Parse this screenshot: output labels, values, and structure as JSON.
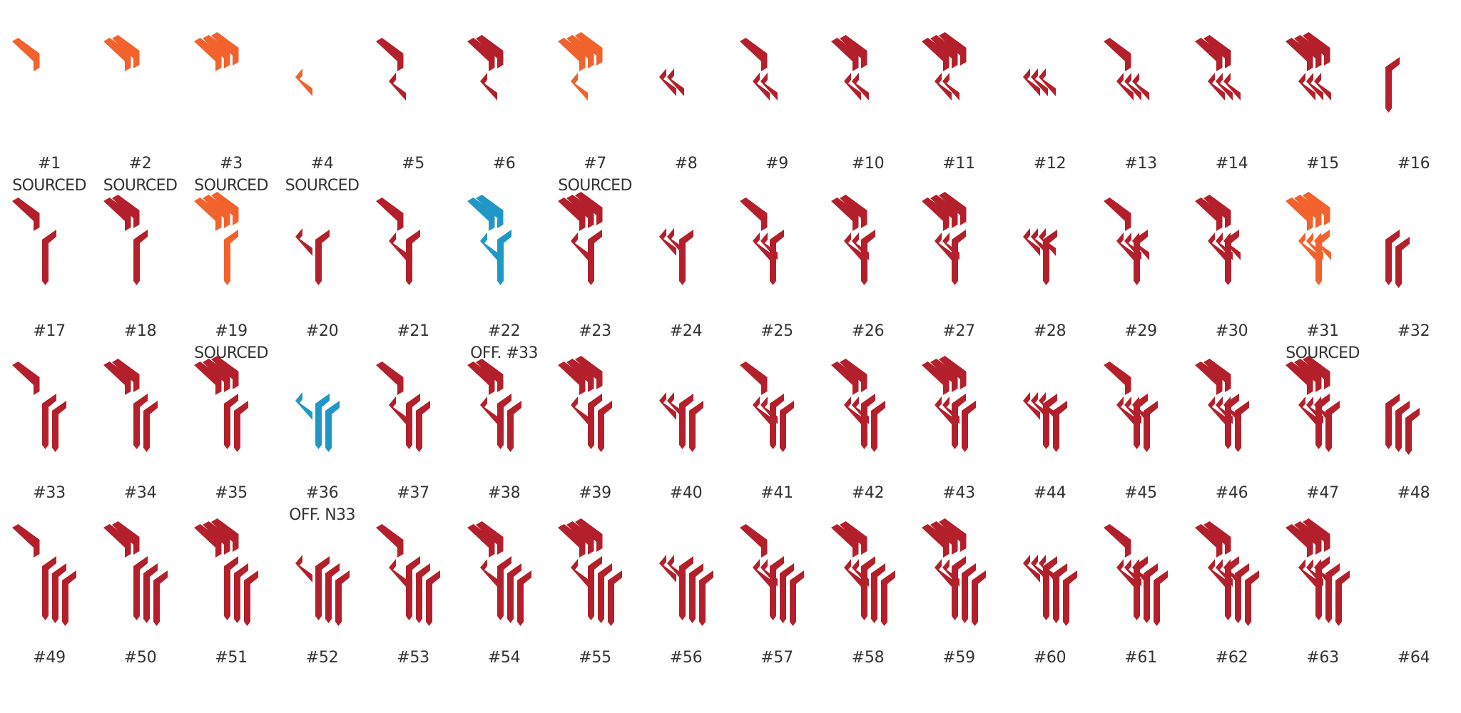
{
  "colors": {
    "red": "#b3202b",
    "orange": "#f2622d",
    "blue": "#1f98c8",
    "text": "#333333"
  },
  "glyphs": [
    {
      "label": "#1",
      "note": "SOURCED",
      "color": "orange",
      "chevrons": 1,
      "hook": 0,
      "stems": 0,
      "wing": 0
    },
    {
      "label": "#2",
      "note": "SOURCED",
      "color": "orange",
      "chevrons": 2,
      "hook": 0,
      "stems": 0,
      "wing": 0
    },
    {
      "label": "#3",
      "note": "SOURCED",
      "color": "orange",
      "chevrons": 3,
      "hook": 0,
      "stems": 0,
      "wing": 0
    },
    {
      "label": "#4",
      "note": "SOURCED",
      "color": "orange",
      "chevrons": 0,
      "hook": 1,
      "stems": 0,
      "wing": 0
    },
    {
      "label": "#5",
      "note": "",
      "color": "red",
      "chevrons": 1,
      "hook": 1,
      "stems": 0,
      "wing": 0
    },
    {
      "label": "#6",
      "note": "",
      "color": "red",
      "chevrons": 2,
      "hook": 1,
      "stems": 0,
      "wing": 0
    },
    {
      "label": "#7",
      "note": "SOURCED",
      "color": "orange",
      "chevrons": 3,
      "hook": 1,
      "stems": 0,
      "wing": 0
    },
    {
      "label": "#8",
      "note": "",
      "color": "red",
      "chevrons": 0,
      "hook": 2,
      "stems": 0,
      "wing": 0
    },
    {
      "label": "#9",
      "note": "",
      "color": "red",
      "chevrons": 1,
      "hook": 2,
      "stems": 0,
      "wing": 0
    },
    {
      "label": "#10",
      "note": "",
      "color": "red",
      "chevrons": 2,
      "hook": 2,
      "stems": 0,
      "wing": 0
    },
    {
      "label": "#11",
      "note": "",
      "color": "red",
      "chevrons": 3,
      "hook": 2,
      "stems": 0,
      "wing": 0
    },
    {
      "label": "#12",
      "note": "",
      "color": "red",
      "chevrons": 0,
      "hook": 3,
      "stems": 0,
      "wing": 0
    },
    {
      "label": "#13",
      "note": "",
      "color": "red",
      "chevrons": 1,
      "hook": 3,
      "stems": 0,
      "wing": 0
    },
    {
      "label": "#14",
      "note": "",
      "color": "red",
      "chevrons": 2,
      "hook": 3,
      "stems": 0,
      "wing": 0
    },
    {
      "label": "#15",
      "note": "",
      "color": "red",
      "chevrons": 3,
      "hook": 3,
      "stems": 0,
      "wing": 0
    },
    {
      "label": "#16",
      "note": "",
      "color": "red",
      "chevrons": 0,
      "hook": 0,
      "stems": 1,
      "wing": 1
    },
    {
      "label": "#17",
      "note": "",
      "color": "red",
      "chevrons": 1,
      "hook": 0,
      "stems": 1,
      "wing": 0
    },
    {
      "label": "#18",
      "note": "",
      "color": "red",
      "chevrons": 2,
      "hook": 0,
      "stems": 1,
      "wing": 0
    },
    {
      "label": "#19",
      "note": "SOURCED",
      "color": "orange",
      "chevrons": 3,
      "hook": 0,
      "stems": 1,
      "wing": 0
    },
    {
      "label": "#20",
      "note": "",
      "color": "red",
      "chevrons": 0,
      "hook": 1,
      "stems": 1,
      "wing": 0
    },
    {
      "label": "#21",
      "note": "",
      "color": "red",
      "chevrons": 1,
      "hook": 1,
      "stems": 1,
      "wing": 0
    },
    {
      "label": "#22",
      "note": "OFF. #33",
      "color": "blue",
      "chevrons": 2,
      "hook": 1,
      "stems": 1,
      "wing": 0
    },
    {
      "label": "#23",
      "note": "",
      "color": "red",
      "chevrons": 3,
      "hook": 1,
      "stems": 1,
      "wing": 0
    },
    {
      "label": "#24",
      "note": "",
      "color": "red",
      "chevrons": 0,
      "hook": 2,
      "stems": 1,
      "wing": 0
    },
    {
      "label": "#25",
      "note": "",
      "color": "red",
      "chevrons": 1,
      "hook": 2,
      "stems": 1,
      "wing": 0
    },
    {
      "label": "#26",
      "note": "",
      "color": "red",
      "chevrons": 2,
      "hook": 2,
      "stems": 1,
      "wing": 0
    },
    {
      "label": "#27",
      "note": "",
      "color": "red",
      "chevrons": 3,
      "hook": 2,
      "stems": 1,
      "wing": 0
    },
    {
      "label": "#28",
      "note": "",
      "color": "red",
      "chevrons": 0,
      "hook": 3,
      "stems": 1,
      "wing": 0
    },
    {
      "label": "#29",
      "note": "",
      "color": "red",
      "chevrons": 1,
      "hook": 3,
      "stems": 1,
      "wing": 0
    },
    {
      "label": "#30",
      "note": "",
      "color": "red",
      "chevrons": 2,
      "hook": 3,
      "stems": 1,
      "wing": 0
    },
    {
      "label": "#31",
      "note": "SOURCED",
      "color": "orange",
      "chevrons": 3,
      "hook": 3,
      "stems": 1,
      "wing": 0
    },
    {
      "label": "#32",
      "note": "",
      "color": "red",
      "chevrons": 0,
      "hook": 0,
      "stems": 2,
      "wing": 1
    },
    {
      "label": "#33",
      "note": "",
      "color": "red",
      "chevrons": 1,
      "hook": 0,
      "stems": 2,
      "wing": 0
    },
    {
      "label": "#34",
      "note": "",
      "color": "red",
      "chevrons": 2,
      "hook": 0,
      "stems": 2,
      "wing": 0
    },
    {
      "label": "#35",
      "note": "",
      "color": "red",
      "chevrons": 3,
      "hook": 0,
      "stems": 2,
      "wing": 0
    },
    {
      "label": "#36",
      "note": "OFF. N33",
      "color": "blue",
      "chevrons": 0,
      "hook": 1,
      "stems": 2,
      "wing": 0
    },
    {
      "label": "#37",
      "note": "",
      "color": "red",
      "chevrons": 1,
      "hook": 1,
      "stems": 2,
      "wing": 0
    },
    {
      "label": "#38",
      "note": "",
      "color": "red",
      "chevrons": 2,
      "hook": 1,
      "stems": 2,
      "wing": 0
    },
    {
      "label": "#39",
      "note": "",
      "color": "red",
      "chevrons": 3,
      "hook": 1,
      "stems": 2,
      "wing": 0
    },
    {
      "label": "#40",
      "note": "",
      "color": "red",
      "chevrons": 0,
      "hook": 2,
      "stems": 2,
      "wing": 0
    },
    {
      "label": "#41",
      "note": "",
      "color": "red",
      "chevrons": 1,
      "hook": 2,
      "stems": 2,
      "wing": 0
    },
    {
      "label": "#42",
      "note": "",
      "color": "red",
      "chevrons": 2,
      "hook": 2,
      "stems": 2,
      "wing": 0
    },
    {
      "label": "#43",
      "note": "",
      "color": "red",
      "chevrons": 3,
      "hook": 2,
      "stems": 2,
      "wing": 0
    },
    {
      "label": "#44",
      "note": "",
      "color": "red",
      "chevrons": 0,
      "hook": 3,
      "stems": 2,
      "wing": 0
    },
    {
      "label": "#45",
      "note": "",
      "color": "red",
      "chevrons": 1,
      "hook": 3,
      "stems": 2,
      "wing": 0
    },
    {
      "label": "#46",
      "note": "",
      "color": "red",
      "chevrons": 2,
      "hook": 3,
      "stems": 2,
      "wing": 0
    },
    {
      "label": "#47",
      "note": "",
      "color": "red",
      "chevrons": 3,
      "hook": 3,
      "stems": 2,
      "wing": 0
    },
    {
      "label": "#48",
      "note": "",
      "color": "red",
      "chevrons": 0,
      "hook": 0,
      "stems": 3,
      "wing": 1
    },
    {
      "label": "#49",
      "note": "",
      "color": "red",
      "chevrons": 1,
      "hook": 0,
      "stems": 3,
      "wing": 0
    },
    {
      "label": "#50",
      "note": "",
      "color": "red",
      "chevrons": 2,
      "hook": 0,
      "stems": 3,
      "wing": 0
    },
    {
      "label": "#51",
      "note": "",
      "color": "red",
      "chevrons": 3,
      "hook": 0,
      "stems": 3,
      "wing": 0
    },
    {
      "label": "#52",
      "note": "",
      "color": "red",
      "chevrons": 0,
      "hook": 1,
      "stems": 3,
      "wing": 0
    },
    {
      "label": "#53",
      "note": "",
      "color": "red",
      "chevrons": 1,
      "hook": 1,
      "stems": 3,
      "wing": 0
    },
    {
      "label": "#54",
      "note": "",
      "color": "red",
      "chevrons": 2,
      "hook": 1,
      "stems": 3,
      "wing": 0
    },
    {
      "label": "#55",
      "note": "",
      "color": "red",
      "chevrons": 3,
      "hook": 1,
      "stems": 3,
      "wing": 0
    },
    {
      "label": "#56",
      "note": "",
      "color": "red",
      "chevrons": 0,
      "hook": 2,
      "stems": 3,
      "wing": 0
    },
    {
      "label": "#57",
      "note": "",
      "color": "red",
      "chevrons": 1,
      "hook": 2,
      "stems": 3,
      "wing": 0
    },
    {
      "label": "#58",
      "note": "",
      "color": "red",
      "chevrons": 2,
      "hook": 2,
      "stems": 3,
      "wing": 0
    },
    {
      "label": "#59",
      "note": "",
      "color": "red",
      "chevrons": 3,
      "hook": 2,
      "stems": 3,
      "wing": 0
    },
    {
      "label": "#60",
      "note": "",
      "color": "red",
      "chevrons": 0,
      "hook": 3,
      "stems": 3,
      "wing": 0
    },
    {
      "label": "#61",
      "note": "",
      "color": "red",
      "chevrons": 1,
      "hook": 3,
      "stems": 3,
      "wing": 0
    },
    {
      "label": "#62",
      "note": "",
      "color": "red",
      "chevrons": 2,
      "hook": 3,
      "stems": 3,
      "wing": 0
    },
    {
      "label": "#63",
      "note": "",
      "color": "red",
      "chevrons": 3,
      "hook": 3,
      "stems": 3,
      "wing": 0
    },
    {
      "label": "#64",
      "note": "",
      "color": "red",
      "chevrons": 0,
      "hook": 0,
      "stems": 0,
      "wing": 0
    }
  ]
}
